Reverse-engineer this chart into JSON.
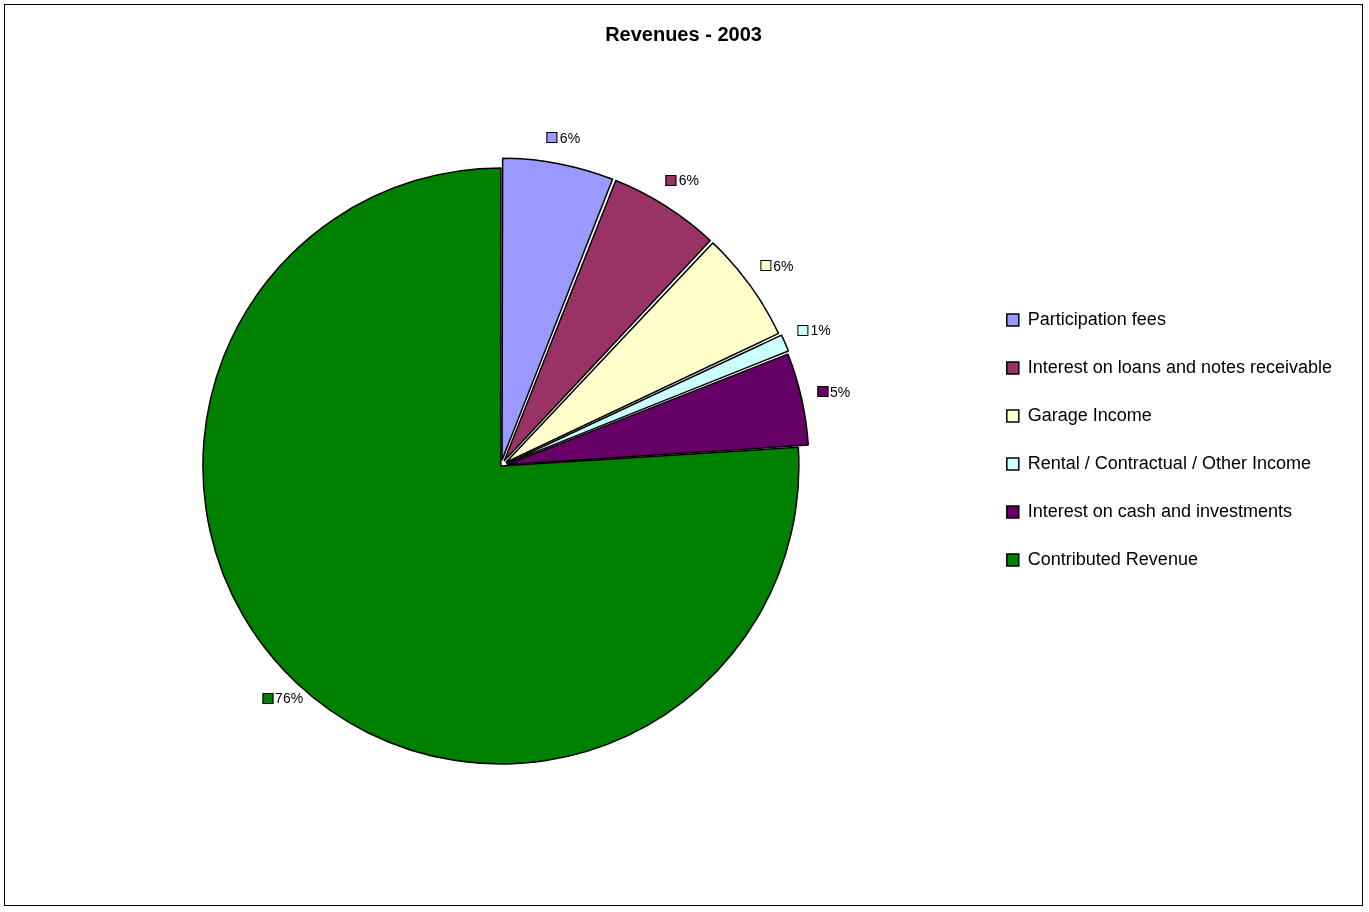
{
  "chart_data": {
    "type": "pie",
    "title": "Revenues - 2003",
    "categories": [
      "Participation fees",
      "Interest on loans and notes receivable",
      "Garage Income",
      "Rental / Contractual / Other Income",
      "Interest on cash and investments",
      "Contributed Revenue"
    ],
    "values": [
      6,
      6,
      6,
      1,
      5,
      76
    ],
    "colors": [
      "#9999ff",
      "#993366",
      "#ffffcc",
      "#ccffff",
      "#660066",
      "#008000"
    ],
    "value_labels": [
      "6%",
      "6%",
      "6%",
      "1%",
      "5%",
      "76%"
    ],
    "legend": "right"
  }
}
